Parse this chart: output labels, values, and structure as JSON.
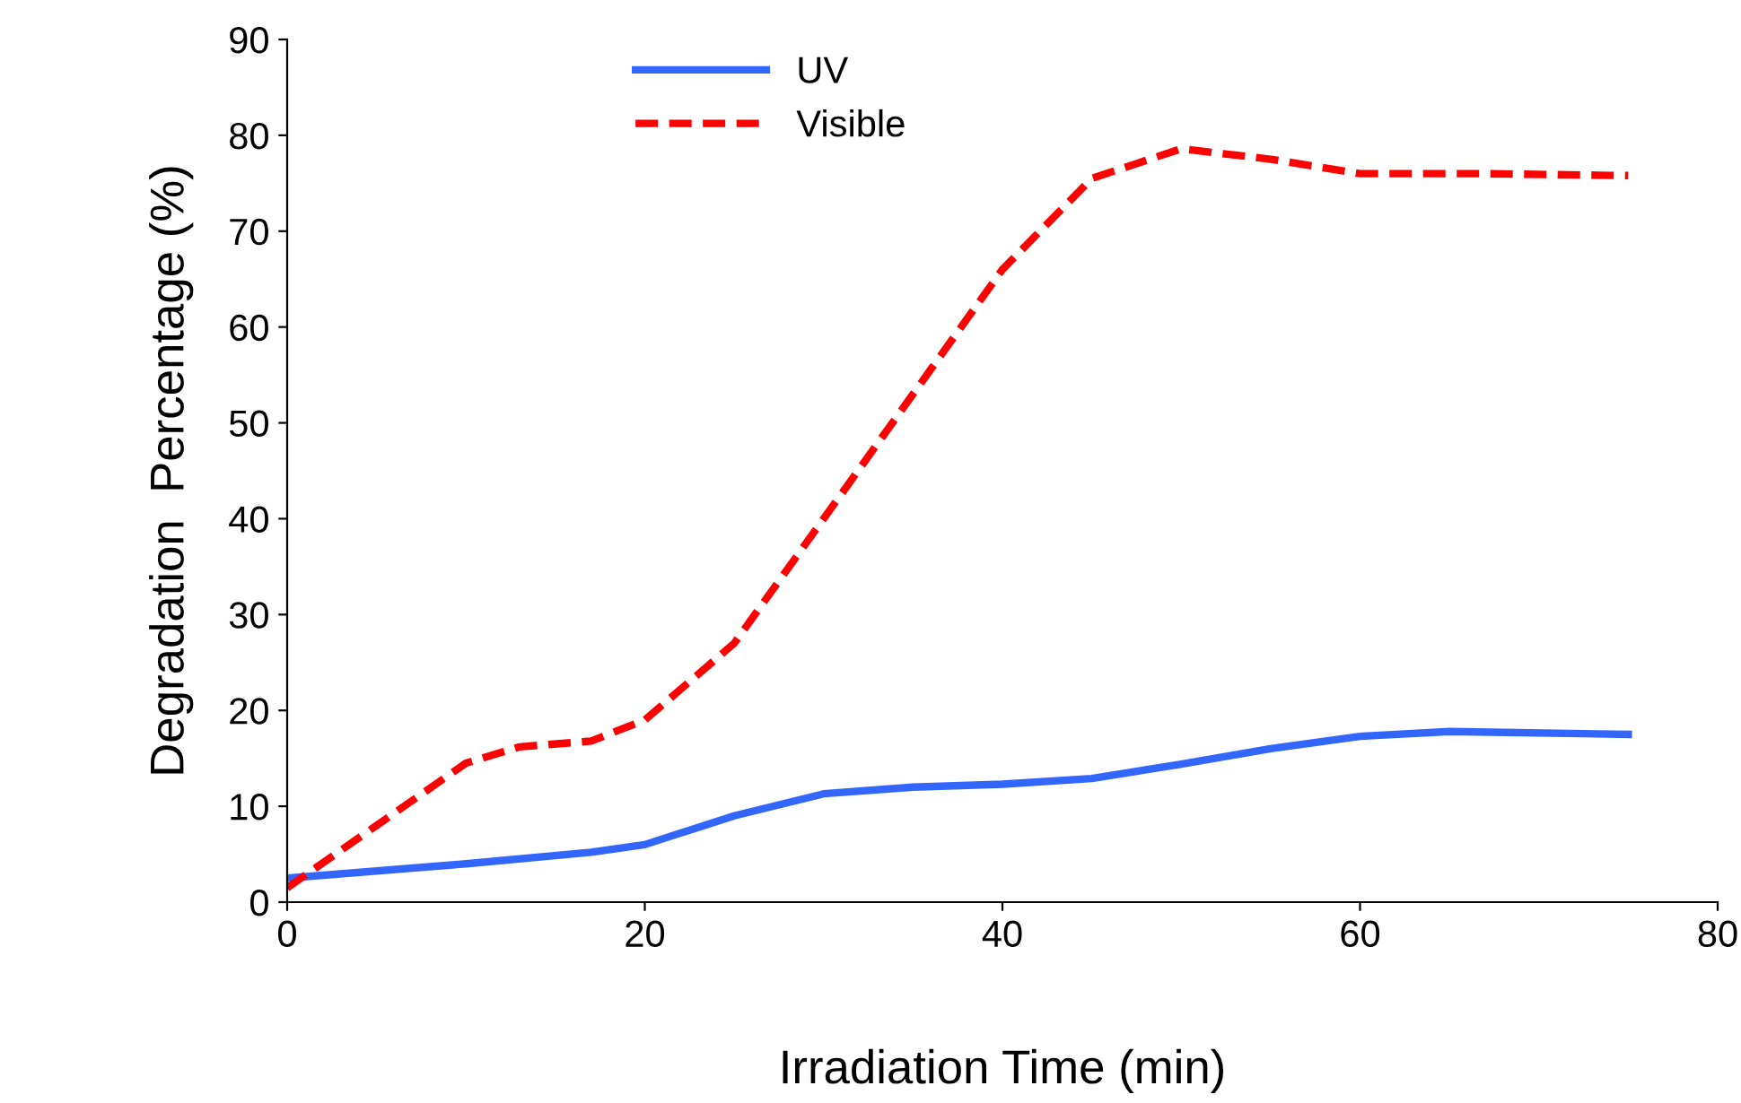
{
  "chart_data": {
    "type": "line",
    "xlabel": "Irradiation Time (min)",
    "ylabel": "Degradation  Percentage (%)",
    "xlim": [
      0,
      80
    ],
    "xticks": [
      0,
      20,
      40,
      60,
      80
    ],
    "ylim": [
      0,
      90
    ],
    "yticks": [
      0,
      10,
      20,
      30,
      40,
      50,
      60,
      70,
      80,
      90
    ],
    "grid": false,
    "legend": "top left",
    "marker": "none",
    "series": [
      {
        "name": "UV",
        "color": "#3366ff",
        "line_style": "solid",
        "x": [
          0,
          10,
          17,
          20,
          25,
          30,
          35,
          40,
          45,
          50,
          55,
          60,
          65,
          75
        ],
        "values": [
          2.5,
          4,
          5.2,
          6,
          9,
          11.3,
          12,
          12.3,
          12.9,
          14.4,
          16,
          17.3,
          17.8,
          17.5
        ]
      },
      {
        "name": "Visible",
        "color": "#ff0000",
        "line_style": "dashed",
        "x": [
          0,
          5,
          10,
          13,
          17,
          20,
          25,
          30,
          35,
          40,
          45,
          50,
          55,
          60,
          67,
          75
        ],
        "values": [
          1.5,
          8,
          14.5,
          16.2,
          16.8,
          19,
          27,
          40,
          53,
          66,
          75.5,
          78.6,
          77.5,
          76,
          76,
          75.8
        ]
      }
    ]
  }
}
